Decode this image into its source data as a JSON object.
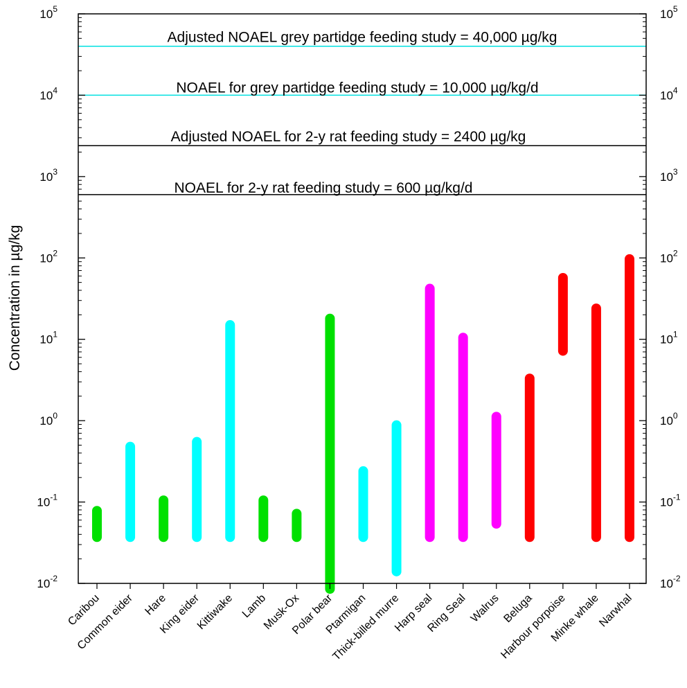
{
  "chart_data": {
    "type": "range-bar",
    "ylabel": "Concentration in µg/kg",
    "yscale": "log",
    "ylim": [
      0.01,
      100000
    ],
    "right_axis_mirrored": true,
    "y_ticks": [
      {
        "value": 0.01,
        "base": "10",
        "exp": "-2"
      },
      {
        "value": 0.1,
        "base": "10",
        "exp": "-1"
      },
      {
        "value": 1,
        "base": "10",
        "exp": "0"
      },
      {
        "value": 10,
        "base": "10",
        "exp": "1"
      },
      {
        "value": 100,
        "base": "10",
        "exp": "2"
      },
      {
        "value": 1000,
        "base": "10",
        "exp": "3"
      },
      {
        "value": 10000,
        "base": "10",
        "exp": "4"
      },
      {
        "value": 100000,
        "base": "10",
        "exp": "5"
      }
    ],
    "categories": [
      "Caribou",
      "Common eider",
      "Hare",
      "King eider",
      "Kittiwake",
      "Lamb",
      "Musk-Ox",
      "Polar bear",
      "Ptarmigan",
      "Thick-billed murre",
      "Harp seal",
      "Ring Seal",
      "Walrus",
      "Beluga",
      "Harbour porpoise",
      "Minke whale",
      "Narwhal"
    ],
    "ranges": [
      {
        "min": 0.037,
        "max": 0.078,
        "color": "#00e000"
      },
      {
        "min": 0.037,
        "max": 0.48,
        "color": "#00ffff"
      },
      {
        "min": 0.037,
        "max": 0.105,
        "color": "#00e000"
      },
      {
        "min": 0.037,
        "max": 0.55,
        "color": "#00ffff"
      },
      {
        "min": 0.037,
        "max": 15,
        "color": "#00ffff"
      },
      {
        "min": 0.037,
        "max": 0.105,
        "color": "#00e000"
      },
      {
        "min": 0.037,
        "max": 0.072,
        "color": "#00e000"
      },
      {
        "min": 0.0085,
        "max": 18,
        "color": "#00e000"
      },
      {
        "min": 0.037,
        "max": 0.24,
        "color": "#00ffff"
      },
      {
        "min": 0.014,
        "max": 0.88,
        "color": "#00ffff"
      },
      {
        "min": 0.037,
        "max": 42,
        "color": "#ff00ff"
      },
      {
        "min": 0.037,
        "max": 10.5,
        "color": "#ff00ff"
      },
      {
        "min": 0.054,
        "max": 1.12,
        "color": "#ff00ff"
      },
      {
        "min": 0.037,
        "max": 3.3,
        "color": "#ff0000"
      },
      {
        "min": 7.2,
        "max": 57,
        "color": "#ff0000"
      },
      {
        "min": 0.037,
        "max": 24,
        "color": "#ff0000"
      },
      {
        "min": 0.037,
        "max": 97,
        "color": "#ff0000"
      }
    ],
    "reference_lines": [
      {
        "value": 40000,
        "label": "Adjusted NOAEL grey partidge feeding study = 40,000 µg/kg",
        "color": "#00e0e0"
      },
      {
        "value": 10000,
        "label": "NOAEL for grey partidge feeding study = 10,000 µg/kg/d",
        "color": "#00e0e0"
      },
      {
        "value": 2400,
        "label": "Adjusted NOAEL for 2-y rat feeding study = 2400 µg/kg",
        "color": "#000000"
      },
      {
        "value": 600,
        "label": "NOAEL for 2-y rat feeding study = 600 µg/kg/d",
        "color": "#000000"
      }
    ]
  }
}
